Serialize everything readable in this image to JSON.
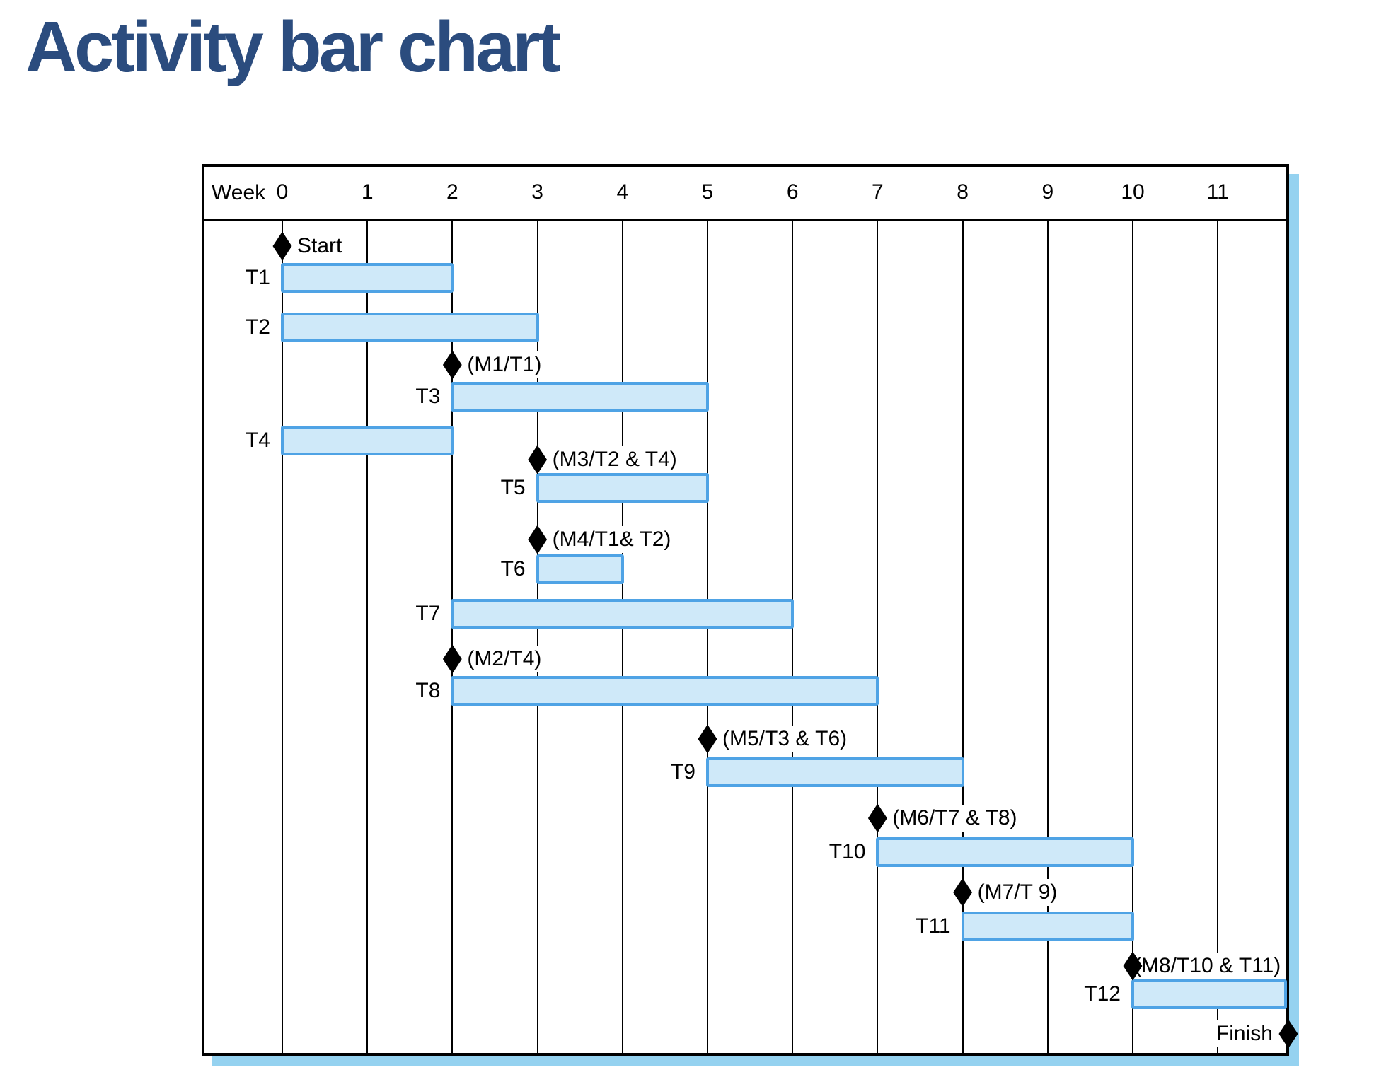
{
  "title": "Activity bar chart",
  "chart_data": {
    "type": "gantt",
    "title": "Activity bar chart",
    "x_axis": {
      "label": "Week",
      "min": 0,
      "max": 11,
      "tick_interval": 1,
      "ticks": [
        "0",
        "1",
        "2",
        "3",
        "4",
        "5",
        "6",
        "7",
        "8",
        "9",
        "10",
        "11"
      ]
    },
    "grid": "vertical-weekly",
    "legend": "none",
    "rows": [
      {
        "kind": "milestone",
        "id": "start",
        "label": "Start",
        "week": 0,
        "label_side": "right"
      },
      {
        "kind": "task",
        "id": "t1",
        "label": "T1",
        "start": 0,
        "end": 2
      },
      {
        "kind": "task",
        "id": "t2",
        "label": "T2",
        "start": 0,
        "end": 3
      },
      {
        "kind": "milestone",
        "id": "m1",
        "label": "(M1/T1)",
        "week": 2,
        "label_side": "right"
      },
      {
        "kind": "task",
        "id": "t3",
        "label": "T3",
        "start": 2,
        "end": 5
      },
      {
        "kind": "task",
        "id": "t4",
        "label": "T4",
        "start": 0,
        "end": 2
      },
      {
        "kind": "milestone",
        "id": "m3",
        "label": "(M3/T2 & T4)",
        "week": 3,
        "label_side": "right"
      },
      {
        "kind": "task",
        "id": "t5",
        "label": "T5",
        "start": 3,
        "end": 5
      },
      {
        "kind": "milestone",
        "id": "m4",
        "label": "(M4/T1& T2)",
        "week": 3,
        "label_side": "right"
      },
      {
        "kind": "task",
        "id": "t6",
        "label": "T6",
        "start": 3,
        "end": 4
      },
      {
        "kind": "task",
        "id": "t7",
        "label": "T7",
        "start": 2,
        "end": 6
      },
      {
        "kind": "milestone",
        "id": "m2",
        "label": "(M2/T4)",
        "week": 2,
        "label_side": "right"
      },
      {
        "kind": "task",
        "id": "t8",
        "label": "T8",
        "start": 2,
        "end": 7
      },
      {
        "kind": "milestone",
        "id": "m5",
        "label": "(M5/T3 & T6)",
        "week": 5,
        "label_side": "right"
      },
      {
        "kind": "task",
        "id": "t9",
        "label": "T9",
        "start": 5,
        "end": 8
      },
      {
        "kind": "milestone",
        "id": "m6",
        "label": "(M6/T7 & T8)",
        "week": 7,
        "label_side": "right"
      },
      {
        "kind": "task",
        "id": "t10",
        "label": "T10",
        "start": 7,
        "end": 10
      },
      {
        "kind": "milestone",
        "id": "m7",
        "label": "(M7/T 9)",
        "week": 8,
        "label_side": "right"
      },
      {
        "kind": "task",
        "id": "t11",
        "label": "T11",
        "start": 8,
        "end": 10
      },
      {
        "kind": "milestone",
        "id": "m8",
        "label": "(M8/T10 & T11)",
        "week": 10,
        "label_side": "right"
      },
      {
        "kind": "task",
        "id": "t12",
        "label": "T12",
        "start": 10,
        "end": 11.8
      },
      {
        "kind": "milestone",
        "id": "finish",
        "label": "Finish",
        "week": 11.83,
        "label_side": "left"
      }
    ],
    "colors": {
      "title": "#2b4c7e",
      "bar_fill": "#cfe9f9",
      "bar_border": "#4fa3e5",
      "milestone": "#000000",
      "gridline": "#000000",
      "box_border": "#000000",
      "shadow": "#95d2f0"
    }
  }
}
